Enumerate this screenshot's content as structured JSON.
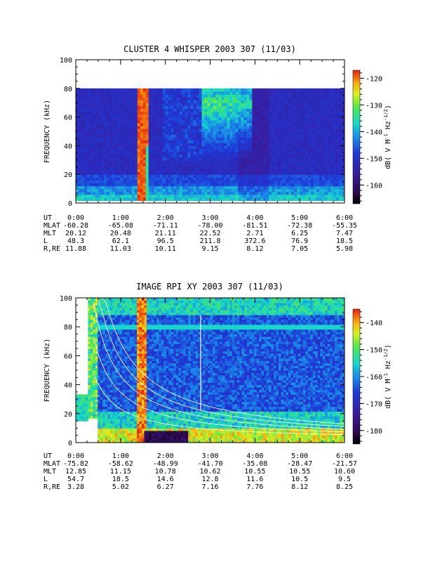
{
  "chart_data": [
    {
      "type": "heatmap",
      "title": "CLUSTER 4 WHISPER 2003 307 (11/03)",
      "ylabel": "FREQUENCY (kHz)",
      "ylim": [
        0,
        100
      ],
      "yticks": [
        "0",
        "20",
        "40",
        "60",
        "80",
        "100"
      ],
      "xlim_hours": [
        0,
        6
      ],
      "data_ymax_khz": 80,
      "colorbar": {
        "label": "dB( V M⁻¹ Hz⁻¹ᐟ²)",
        "label_parts": [
          "dB( V M",
          "-1",
          " Hz",
          "-1/2",
          ")"
        ],
        "ticks": [
          "-120",
          "-130",
          "-140",
          "-150",
          "-160"
        ],
        "tick_values": [
          -120,
          -130,
          -140,
          -150,
          -160
        ],
        "range": [
          -167,
          -117
        ]
      },
      "ephemeris": {
        "rows": [
          {
            "label": "UT",
            "values": [
              "0:00",
              "1:00",
              "2:00",
              "3:00",
              "4:00",
              "5:00",
              "6:00"
            ]
          },
          {
            "label": "MLAT",
            "values": [
              "-60.28",
              "-65.08",
              "-71.11",
              "-78.00",
              "-81.51",
              "-72.38",
              "-55.35"
            ]
          },
          {
            "label": "MLT",
            "values": [
              "20.12",
              "20.48",
              "21.11",
              "22.52",
              "2.71",
              "6.25",
              "7.47"
            ]
          },
          {
            "label": "L",
            "values": [
              "48.3",
              "62.1",
              "96.5",
              "211.8",
              "372.6",
              "76.9",
              "18.5"
            ]
          },
          {
            "label": "R,RE",
            "values": [
              "11.88",
              "11.03",
              "10.11",
              "9.15",
              "8.12",
              "7.05",
              "5.98"
            ]
          }
        ]
      }
    },
    {
      "type": "heatmap",
      "title": "IMAGE RPI XY 2003 307 (11/03)",
      "ylabel": "FREQUENCY (kHz)",
      "ylim": [
        0,
        100
      ],
      "yticks": [
        "0",
        "20",
        "40",
        "60",
        "80",
        "100"
      ],
      "xlim_hours": [
        0,
        6
      ],
      "colorbar": {
        "label": "dB( V M⁻¹ Hz⁻¹ᐟ²)",
        "label_parts": [
          "dB( V M",
          "-1",
          " Hz",
          "-1/2",
          ")"
        ],
        "ticks": [
          "-140",
          "-150",
          "-160",
          "-170",
          "-180"
        ],
        "tick_values": [
          -140,
          -150,
          -160,
          -170,
          -180
        ],
        "range": [
          -185,
          -135
        ]
      },
      "ephemeris": {
        "rows": [
          {
            "label": "UT",
            "values": [
              "0:00",
              "1:00",
              "2:00",
              "3:00",
              "4:00",
              "5:00",
              "6:00"
            ]
          },
          {
            "label": "MLAT",
            "values": [
              "-75.82",
              "-58.62",
              "-48.99",
              "-41.70",
              "-35.08",
              "-28.47",
              "-21.57"
            ]
          },
          {
            "label": "MLT",
            "values": [
              "12.85",
              "11.15",
              "10.78",
              "10.62",
              "10.55",
              "10.55",
              "10.60"
            ]
          },
          {
            "label": "L",
            "values": [
              "54.7",
              "18.5",
              "14.6",
              "12.8",
              "11.6",
              "10.5",
              "9.5"
            ]
          },
          {
            "label": "R,RE",
            "values": [
              "3.28",
              "5.02",
              "6.27",
              "7.16",
              "7.76",
              "8.12",
              "8.25"
            ]
          }
        ]
      }
    }
  ]
}
